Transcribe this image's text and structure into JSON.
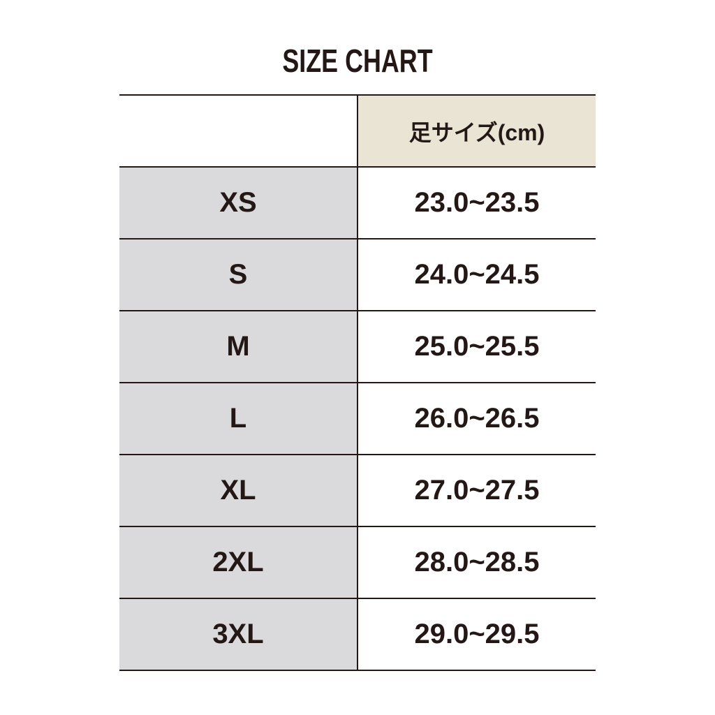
{
  "title": "SIZE CHART",
  "header": {
    "size": "",
    "foot_size": "足サイズ(cm)"
  },
  "rows": [
    {
      "size": "XS",
      "range": "23.0~23.5"
    },
    {
      "size": "S",
      "range": "24.0~24.5"
    },
    {
      "size": "M",
      "range": "25.0~25.5"
    },
    {
      "size": "L",
      "range": "26.0~26.5"
    },
    {
      "size": "XL",
      "range": "27.0~27.5"
    },
    {
      "size": "2XL",
      "range": "28.0~28.5"
    },
    {
      "size": "3XL",
      "range": "29.0~29.5"
    }
  ],
  "colors": {
    "text": "#231815",
    "size_column": "#dadadc",
    "header_cell": "#e9e4d4"
  }
}
